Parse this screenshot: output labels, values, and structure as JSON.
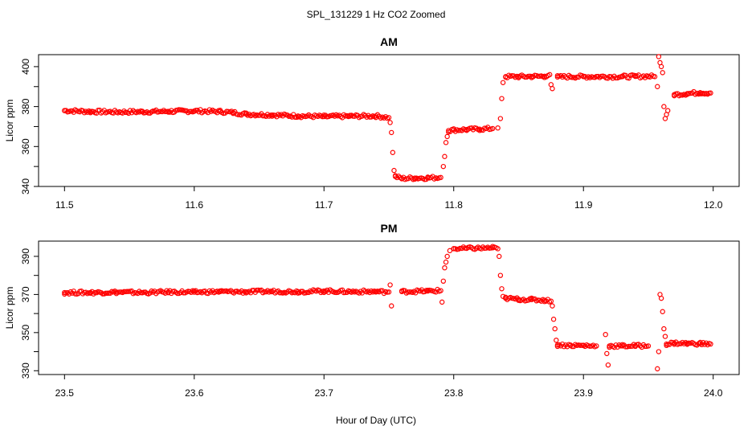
{
  "figure": {
    "title": "SPL_131229  1 Hz CO2 Zoomed",
    "xlabel": "Hour of Day (UTC)",
    "point_color": "#ff0000"
  },
  "chart_data": [
    {
      "type": "scatter",
      "title": "AM",
      "xlabel": "Hour of Day (UTC)",
      "ylabel": "Licor ppm",
      "xlim": [
        11.48,
        12.02
      ],
      "ylim": [
        340,
        406
      ],
      "x_ticks": [
        11.5,
        11.6,
        11.7,
        11.8,
        11.9,
        12.0
      ],
      "x_tick_labels": [
        "11.5",
        "11.6",
        "11.7",
        "11.8",
        "11.9",
        "12.0"
      ],
      "y_ticks": [
        340,
        360,
        380,
        400
      ],
      "y_tick_labels": [
        "340",
        "360",
        "380",
        "400"
      ],
      "series": [
        {
          "name": "CO2",
          "color": "#ff0000",
          "x": [
            11.5,
            11.52,
            11.54,
            11.56,
            11.58,
            11.6,
            11.62,
            11.63,
            11.64,
            11.66,
            11.68,
            11.7,
            11.72,
            11.74,
            11.75,
            11.751,
            11.752,
            11.753,
            11.754,
            11.755,
            11.76,
            11.77,
            11.78,
            11.79,
            11.792,
            11.793,
            11.794,
            11.795,
            11.796,
            11.8,
            11.81,
            11.82,
            11.83,
            11.834,
            11.836,
            11.837,
            11.838,
            11.84,
            11.85,
            11.86,
            11.87,
            11.874,
            11.875,
            11.876,
            11.88,
            11.89,
            11.9,
            11.91,
            11.92,
            11.93,
            11.94,
            11.95,
            11.955,
            11.957,
            11.958,
            11.959,
            11.96,
            11.961,
            11.962,
            11.963,
            11.964,
            11.965,
            11.97,
            11.98,
            11.99,
            11.998
          ],
          "y": [
            378.0,
            377.5,
            377.3,
            377.4,
            377.6,
            377.8,
            377.5,
            377.0,
            376.2,
            375.8,
            375.3,
            375.0,
            375.2,
            375.3,
            374.5,
            372.0,
            367.0,
            357.0,
            348.0,
            345.0,
            344.0,
            344.2,
            344.3,
            344.5,
            350.0,
            355.0,
            362.0,
            365.0,
            368.0,
            368.3,
            368.5,
            368.7,
            369.0,
            369.3,
            374.0,
            384.0,
            392.0,
            395.0,
            395.0,
            395.1,
            395.2,
            396.0,
            391.0,
            389.0,
            394.8,
            395.0,
            395.0,
            395.0,
            395.0,
            395.0,
            395.1,
            395.2,
            395.0,
            390.0,
            405.0,
            402.0,
            400.0,
            397.0,
            380.0,
            374.0,
            376.0,
            378.0,
            386.0,
            386.5,
            387.0,
            386.8
          ]
        }
      ]
    },
    {
      "type": "scatter",
      "title": "PM",
      "xlabel": "Hour of Day (UTC)",
      "ylabel": "Licor ppm",
      "xlim": [
        23.48,
        24.02
      ],
      "ylim": [
        328,
        398
      ],
      "x_ticks": [
        23.5,
        23.6,
        23.7,
        23.8,
        23.9,
        24.0
      ],
      "x_tick_labels": [
        "23.5",
        "23.6",
        "23.7",
        "23.8",
        "23.9",
        "24.0"
      ],
      "y_ticks": [
        330,
        350,
        370,
        390
      ],
      "y_tick_labels": [
        "330",
        "350",
        "370",
        "390"
      ],
      "series": [
        {
          "name": "CO2",
          "color": "#ff0000",
          "x": [
            23.5,
            23.52,
            23.54,
            23.56,
            23.58,
            23.6,
            23.62,
            23.64,
            23.66,
            23.68,
            23.7,
            23.72,
            23.74,
            23.75,
            23.751,
            23.752,
            23.76,
            23.78,
            23.79,
            23.791,
            23.792,
            23.793,
            23.794,
            23.795,
            23.797,
            23.8,
            23.81,
            23.82,
            23.83,
            23.834,
            23.835,
            23.836,
            23.837,
            23.838,
            23.84,
            23.85,
            23.86,
            23.87,
            23.875,
            23.876,
            23.877,
            23.878,
            23.879,
            23.88,
            23.89,
            23.9,
            23.91,
            23.917,
            23.918,
            23.919,
            23.92,
            23.93,
            23.94,
            23.95,
            23.957,
            23.958,
            23.959,
            23.96,
            23.961,
            23.962,
            23.963,
            23.964,
            23.97,
            23.98,
            23.99,
            23.998
          ],
          "y": [
            371.0,
            371.0,
            371.2,
            371.0,
            371.3,
            371.2,
            371.5,
            371.4,
            371.6,
            371.5,
            371.8,
            371.5,
            371.5,
            371.3,
            375.0,
            364.0,
            371.5,
            371.8,
            372.0,
            366.0,
            377.0,
            384.0,
            387.0,
            390.0,
            393.0,
            394.0,
            394.2,
            394.3,
            394.5,
            394.0,
            390.0,
            380.0,
            373.0,
            369.0,
            368.0,
            367.5,
            367.3,
            367.0,
            366.5,
            364.0,
            357.0,
            352.0,
            346.0,
            343.5,
            343.3,
            343.2,
            343.0,
            349.0,
            339.0,
            333.0,
            343.0,
            343.0,
            343.1,
            343.0,
            331.0,
            340.0,
            370.0,
            368.0,
            361.0,
            352.0,
            348.0,
            344.0,
            344.5,
            344.3,
            344.2,
            344.0
          ]
        }
      ]
    }
  ]
}
